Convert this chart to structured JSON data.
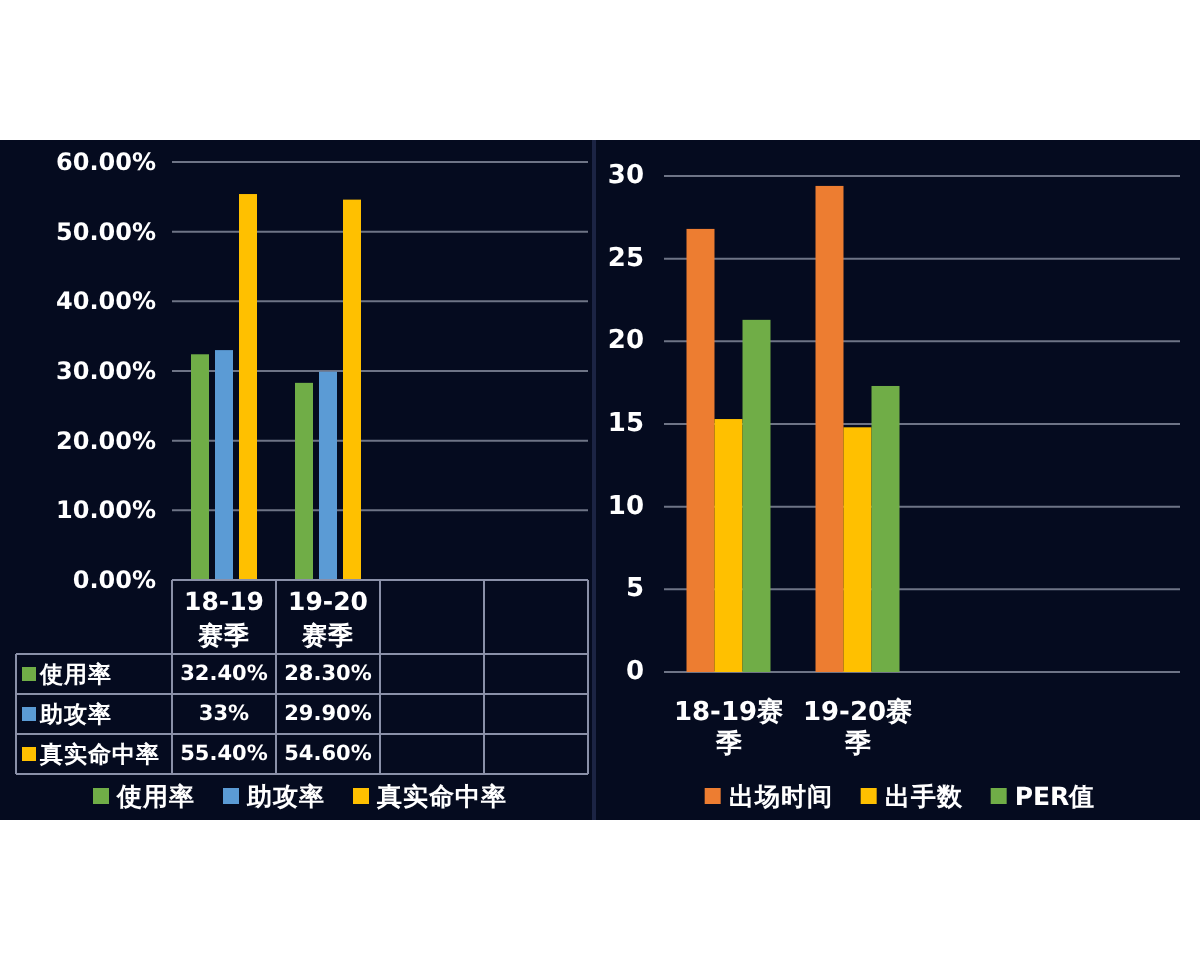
{
  "chart_data": [
    {
      "type": "bar",
      "categories": [
        "18-19赛季",
        "19-20赛季",
        null,
        null
      ],
      "series": [
        {
          "name": "使用率",
          "color": "#70ad47",
          "values": [
            32.4,
            28.3,
            null,
            null
          ],
          "value_labels": [
            "32.40%",
            "28.30%",
            null,
            null
          ]
        },
        {
          "name": "助攻率",
          "color": "#5b9bd5",
          "values": [
            33,
            29.9,
            null,
            null
          ],
          "value_labels": [
            "33%",
            "29.90%",
            null,
            null
          ]
        },
        {
          "name": "真实命中率",
          "color": "#ffc000",
          "values": [
            55.4,
            54.6,
            null,
            null
          ],
          "value_labels": [
            "55.40%",
            "54.60%",
            null,
            null
          ]
        }
      ],
      "ylim": [
        0,
        60
      ],
      "yticks": [
        {
          "value": 0,
          "label": "0.00%"
        },
        {
          "value": 10,
          "label": "10.00%"
        },
        {
          "value": 20,
          "label": "20.00%"
        },
        {
          "value": 30,
          "label": "30.00%"
        },
        {
          "value": 40,
          "label": "40.00%"
        },
        {
          "value": 50,
          "label": "50.00%"
        },
        {
          "value": 60,
          "label": "60.00%"
        }
      ],
      "grid": "y",
      "legend": "bottom"
    },
    {
      "type": "bar",
      "categories": [
        "18-19赛季",
        "19-20赛季",
        null,
        null
      ],
      "series": [
        {
          "name": "出场时间",
          "color": "#ed7d31",
          "values": [
            26.8,
            29.4,
            null,
            null
          ]
        },
        {
          "name": "出手数",
          "color": "#ffc000",
          "values": [
            15.3,
            14.8,
            null,
            null
          ]
        },
        {
          "name": "PER值",
          "color": "#70ad47",
          "values": [
            21.3,
            17.3,
            null,
            null
          ]
        }
      ],
      "ylim": [
        0,
        30
      ],
      "yticks": [
        0,
        5,
        10,
        15,
        20,
        25,
        30
      ],
      "grid": "y",
      "legend": "bottom"
    }
  ]
}
